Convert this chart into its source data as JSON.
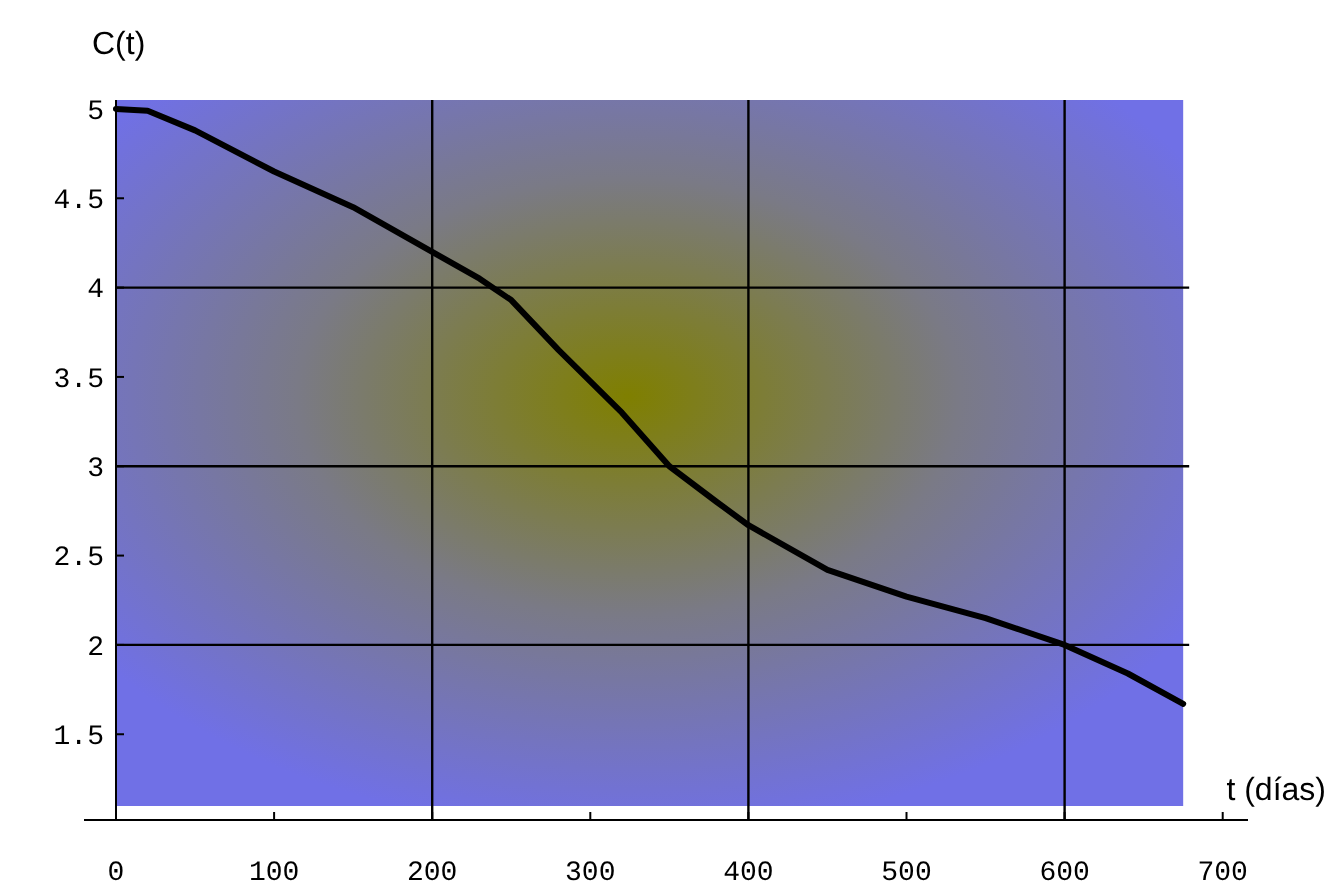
{
  "chart_data": {
    "type": "line",
    "xlabel": "t (días)",
    "ylabel": "C(t)",
    "x": [
      0,
      20,
      50,
      100,
      150,
      200,
      230,
      250,
      280,
      320,
      350,
      380,
      400,
      450,
      500,
      550,
      600,
      640,
      675
    ],
    "series": [
      {
        "color": "#000000",
        "values": [
          5,
          4.99,
          4.88,
          4.65,
          4.45,
          4.2,
          4.05,
          3.93,
          3.65,
          3.3,
          3.0,
          2.8,
          2.67,
          2.42,
          2.27,
          2.15,
          2.0,
          1.84,
          1.67
        ]
      }
    ],
    "xlim": [
      0,
      716
    ],
    "ylim": [
      1.02,
      5.05
    ],
    "xticks": [
      0,
      100,
      200,
      300,
      400,
      500,
      600,
      700
    ],
    "yticks": [
      1.5,
      2,
      2.5,
      3,
      3.5,
      4,
      4.5,
      5
    ],
    "ref_lines": [
      {
        "axis": "x",
        "value": 200
      },
      {
        "axis": "x",
        "value": 400
      },
      {
        "axis": "x",
        "value": 600
      },
      {
        "axis": "y",
        "value": 2
      },
      {
        "axis": "y",
        "value": 3
      },
      {
        "axis": "y",
        "value": 4
      }
    ],
    "marker": "none",
    "line_style": "solid"
  }
}
